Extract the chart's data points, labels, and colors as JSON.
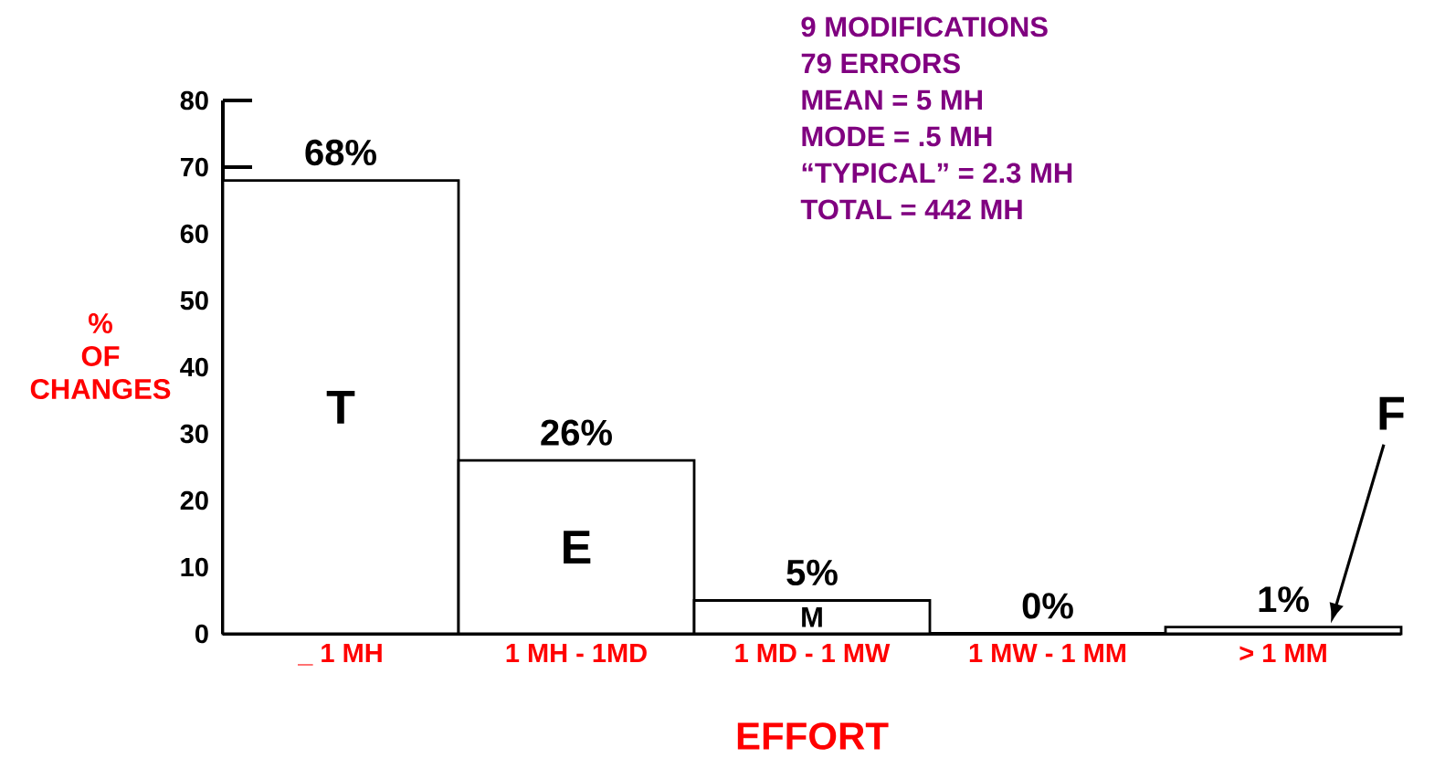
{
  "chart_data": {
    "type": "bar",
    "xlabel": "EFFORT",
    "ylabel": "% OF CHANGES",
    "categories": [
      "_ 1 MH",
      "1 MH - 1MD",
      "1 MD - 1 MW",
      "1 MW - 1 MM",
      "> 1 MM"
    ],
    "values": [
      68,
      26,
      5,
      0,
      1
    ],
    "value_labels": [
      "68%",
      "26%",
      "5%",
      "0%",
      "1%"
    ],
    "color": "#ffffff",
    "ylim": [
      0,
      80
    ],
    "yticks": [
      0,
      10,
      20,
      30,
      40,
      50,
      60,
      70,
      80
    ],
    "annotations": [
      "T",
      "E",
      "M",
      "F",
      "9 MODIFICATIONS",
      "79 ERRORS",
      "MEAN = 5 MH",
      "MODE = .5 MH",
      "“TYPICAL” = 2.3 MH",
      "TOTAL = 442 MH"
    ]
  }
}
